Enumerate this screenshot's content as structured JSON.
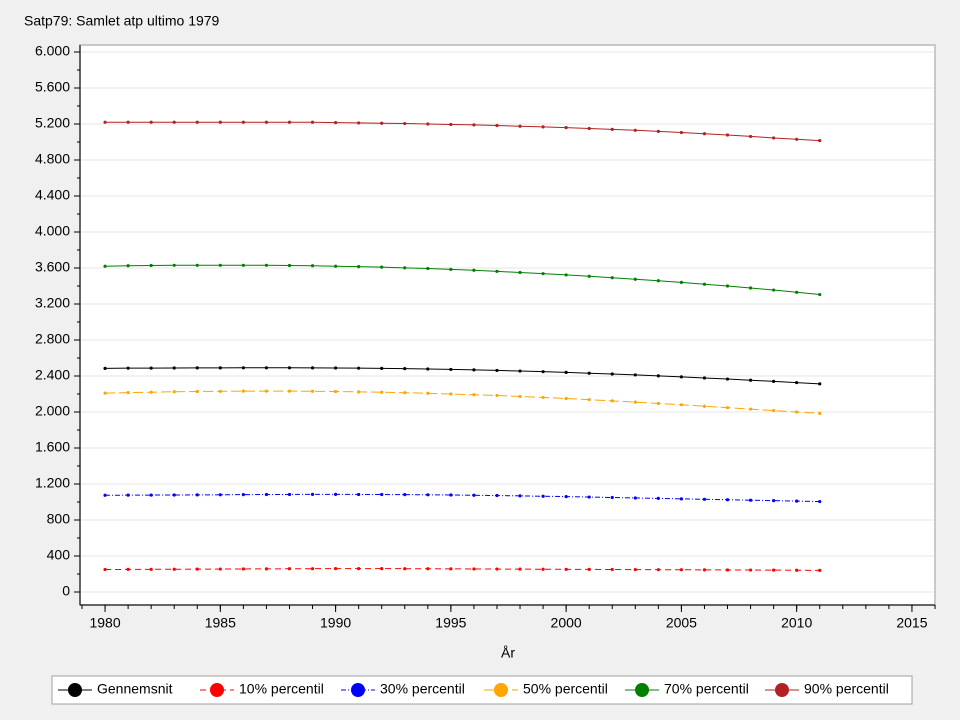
{
  "chart_data": {
    "type": "line",
    "title": "Satp79: Samlet atp ultimo 1979",
    "x_label": "År",
    "x": [
      1980,
      1981,
      1982,
      1983,
      1984,
      1985,
      1986,
      1987,
      1988,
      1989,
      1990,
      1991,
      1992,
      1993,
      1994,
      1995,
      1996,
      1997,
      1998,
      1999,
      2000,
      2001,
      2002,
      2003,
      2004,
      2005,
      2006,
      2007,
      2008,
      2009,
      2010,
      2011
    ],
    "xlim": [
      1979,
      2016
    ],
    "xticks": [
      1980,
      1985,
      1990,
      1995,
      2000,
      2005,
      2010,
      2015
    ],
    "ylim": [
      0,
      6000
    ],
    "yticks": [
      {
        "value": 0,
        "label": "0"
      },
      {
        "value": 400,
        "label": "400"
      },
      {
        "value": 800,
        "label": "800"
      },
      {
        "value": 1200,
        "label": "1.200"
      },
      {
        "value": 1600,
        "label": "1.600"
      },
      {
        "value": 2000,
        "label": "2.000"
      },
      {
        "value": 2400,
        "label": "2.400"
      },
      {
        "value": 2800,
        "label": "2.800"
      },
      {
        "value": 3200,
        "label": "3.200"
      },
      {
        "value": 3600,
        "label": "3.600"
      },
      {
        "value": 4000,
        "label": "4.000"
      },
      {
        "value": 4400,
        "label": "4.400"
      },
      {
        "value": 4800,
        "label": "4.800"
      },
      {
        "value": 5200,
        "label": "5.200"
      },
      {
        "value": 5600,
        "label": "5.600"
      },
      {
        "value": 6000,
        "label": "6.000"
      }
    ],
    "grid": true,
    "legend": "bottom",
    "series": [
      {
        "name": "Gennemsnit",
        "color": "#000000",
        "dash": "solid",
        "values": [
          2485,
          2487,
          2488,
          2489,
          2490,
          2490,
          2491,
          2491,
          2491,
          2490,
          2489,
          2487,
          2485,
          2482,
          2478,
          2473,
          2468,
          2462,
          2455,
          2448,
          2440,
          2431,
          2422,
          2412,
          2401,
          2390,
          2378,
          2366,
          2353,
          2340,
          2327,
          2313
        ]
      },
      {
        "name": "10% percentil",
        "color": "#ff0000",
        "dash": "dash",
        "values": [
          250,
          251,
          252,
          253,
          254,
          255,
          256,
          257,
          258,
          259,
          260,
          260,
          260,
          259,
          258,
          257,
          256,
          255,
          254,
          253,
          252,
          251,
          250,
          249,
          248,
          247,
          246,
          245,
          244,
          243,
          242,
          240
        ]
      },
      {
        "name": "30% percentil",
        "color": "#0000ff",
        "dash": "dashdot",
        "values": [
          1075,
          1076,
          1077,
          1078,
          1079,
          1080,
          1082,
          1083,
          1084,
          1085,
          1085,
          1084,
          1083,
          1082,
          1080,
          1078,
          1075,
          1072,
          1068,
          1064,
          1060,
          1055,
          1050,
          1045,
          1040,
          1035,
          1030,
          1025,
          1020,
          1015,
          1010,
          1005
        ]
      },
      {
        "name": "50% percentil",
        "color": "#ffa500",
        "dash": "longdash",
        "values": [
          2210,
          2215,
          2220,
          2225,
          2228,
          2230,
          2232,
          2232,
          2232,
          2230,
          2228,
          2224,
          2220,
          2214,
          2208,
          2200,
          2192,
          2183,
          2173,
          2162,
          2150,
          2137,
          2124,
          2110,
          2095,
          2080,
          2064,
          2048,
          2032,
          2016,
          2000,
          1985
        ]
      },
      {
        "name": "70% percentil",
        "color": "#008000",
        "dash": "solid",
        "values": [
          3620,
          3625,
          3628,
          3630,
          3630,
          3630,
          3630,
          3630,
          3628,
          3625,
          3620,
          3615,
          3610,
          3602,
          3595,
          3585,
          3575,
          3563,
          3550,
          3537,
          3523,
          3508,
          3492,
          3475,
          3458,
          3440,
          3420,
          3400,
          3378,
          3355,
          3330,
          3305
        ]
      },
      {
        "name": "90% percentil",
        "color": "#b22222",
        "dash": "solid",
        "values": [
          5220,
          5220,
          5220,
          5220,
          5220,
          5220,
          5220,
          5220,
          5220,
          5220,
          5215,
          5212,
          5208,
          5205,
          5200,
          5195,
          5190,
          5183,
          5175,
          5168,
          5160,
          5150,
          5140,
          5130,
          5118,
          5105,
          5092,
          5078,
          5062,
          5045,
          5030,
          5015
        ]
      }
    ]
  }
}
